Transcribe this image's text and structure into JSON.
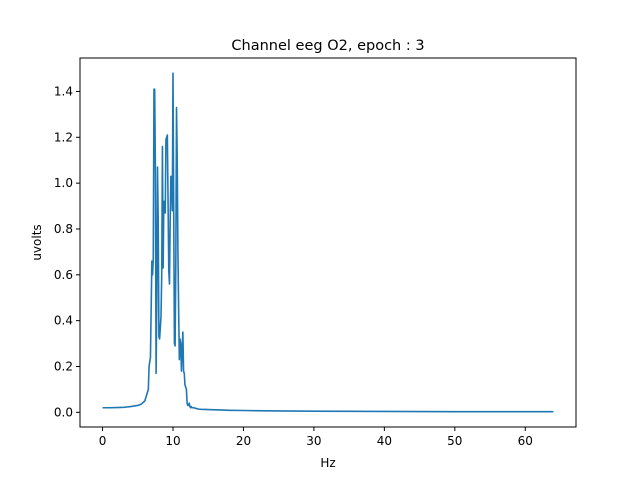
{
  "chart_data": {
    "type": "line",
    "title": "Channel eeg O2, epoch : 3",
    "xlabel": "Hz",
    "ylabel": "uvolts",
    "xlim": [
      -3.2,
      67.2
    ],
    "ylim": [
      -0.064,
      1.546
    ],
    "xticks": [
      0,
      10,
      20,
      30,
      40,
      50,
      60
    ],
    "xtick_labels": [
      "0",
      "10",
      "20",
      "30",
      "40",
      "50",
      "60"
    ],
    "yticks": [
      0.0,
      0.2,
      0.4,
      0.6,
      0.8,
      1.0,
      1.2,
      1.4
    ],
    "ytick_labels": [
      "0.0",
      "0.2",
      "0.4",
      "0.6",
      "0.8",
      "1.0",
      "1.2",
      "1.4"
    ],
    "grid": false,
    "series_color": "#1f77b4",
    "series": [
      {
        "x": [
          0,
          1,
          2,
          3,
          4,
          5,
          5.5,
          6,
          6.3,
          6.5,
          6.6,
          6.8,
          7.0,
          7.05,
          7.1,
          7.2,
          7.3,
          7.4,
          7.5,
          7.6,
          7.7,
          7.8,
          7.9,
          8.0,
          8.1,
          8.2,
          8.3,
          8.4,
          8.5,
          8.6,
          8.7,
          8.8,
          8.9,
          9.0,
          9.1,
          9.2,
          9.4,
          9.5,
          9.6,
          9.7,
          9.8,
          9.9,
          10.0,
          10.1,
          10.2,
          10.3,
          10.4,
          10.5,
          10.6,
          10.7,
          10.8,
          10.9,
          11.0,
          11.1,
          11.2,
          11.3,
          11.4,
          11.5,
          11.6,
          11.7,
          11.8,
          11.9,
          12.0,
          12.1,
          12.2,
          12.3,
          12.4,
          12.5,
          12.6,
          12.7,
          12.8,
          12.9,
          13.0,
          13.1,
          13.3,
          13.5,
          13.7,
          14.0,
          15,
          16,
          18,
          20,
          25,
          30,
          40,
          50,
          64
        ],
        "y": [
          0.02,
          0.02,
          0.021,
          0.022,
          0.025,
          0.03,
          0.036,
          0.05,
          0.08,
          0.1,
          0.2,
          0.24,
          0.66,
          0.62,
          0.6,
          0.67,
          1.41,
          1.41,
          1.05,
          0.17,
          0.5,
          1.07,
          0.84,
          0.33,
          0.32,
          0.37,
          0.42,
          0.6,
          1.16,
          0.63,
          0.92,
          0.92,
          0.87,
          1.19,
          1.2,
          1.21,
          0.62,
          0.56,
          0.84,
          1.03,
          1.02,
          0.88,
          1.48,
          0.9,
          0.3,
          0.29,
          0.65,
          1.33,
          1.1,
          0.7,
          0.45,
          0.23,
          0.32,
          0.3,
          0.18,
          0.27,
          0.35,
          0.18,
          0.17,
          0.12,
          0.11,
          0.1,
          0.04,
          0.03,
          0.03,
          0.04,
          0.025,
          0.02,
          0.025,
          0.02,
          0.02,
          0.02,
          0.02,
          0.018,
          0.017,
          0.015,
          0.014,
          0.013,
          0.012,
          0.011,
          0.009,
          0.008,
          0.006,
          0.005,
          0.004,
          0.003,
          0.003
        ]
      }
    ]
  }
}
